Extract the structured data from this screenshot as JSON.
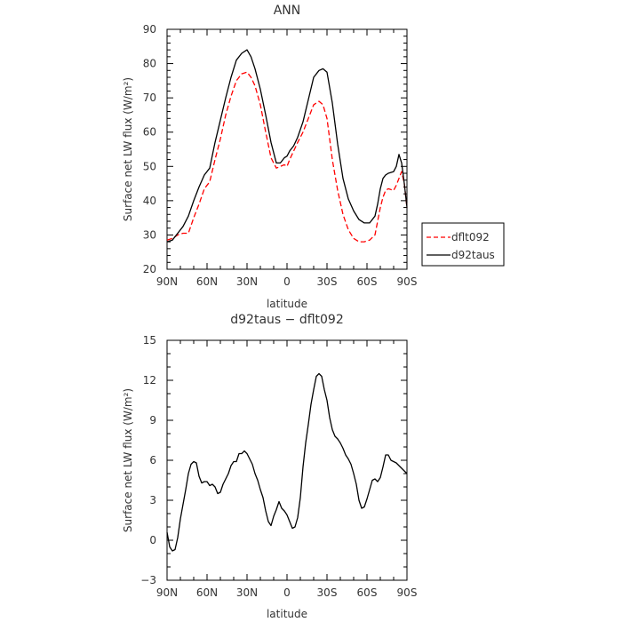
{
  "chart_data": [
    {
      "type": "line",
      "title": "ANN",
      "xlabel": "latitude",
      "ylabel": "Surface net LW flux (W/m²)",
      "xlim": [
        90,
        -90
      ],
      "ylim": [
        20,
        90
      ],
      "x_tick_values": [
        90,
        60,
        30,
        0,
        -30,
        -60,
        -90
      ],
      "x_tick_labels": [
        "90N",
        "60N",
        "30N",
        "0",
        "30S",
        "60S",
        "90S"
      ],
      "y_ticks": [
        20,
        30,
        40,
        50,
        60,
        70,
        80,
        90
      ],
      "grid": false,
      "legend_position": "right-bottom",
      "series": [
        {
          "name": "dflt092",
          "color": "#ff0000",
          "dash": "dashed",
          "x": [
            90,
            86,
            82,
            78,
            74,
            70,
            66,
            62,
            58,
            54,
            50,
            46,
            42,
            38,
            34,
            30,
            27,
            24,
            20,
            16,
            12,
            8,
            5,
            2,
            0,
            -2,
            -5,
            -8,
            -12,
            -16,
            -20,
            -24,
            -27,
            -30,
            -34,
            -38,
            -42,
            -46,
            -50,
            -54,
            -58,
            -62,
            -66,
            -68,
            -70,
            -72,
            -74,
            -76,
            -80,
            -82,
            -84,
            -86,
            -88,
            -90
          ],
          "values": [
            28.5,
            29.0,
            30.0,
            30.5,
            30.5,
            35.0,
            39.0,
            43.5,
            45.5,
            52.0,
            58.0,
            65.0,
            70.5,
            75.0,
            77.0,
            77.5,
            76.0,
            73.5,
            68.0,
            60.0,
            52.5,
            49.5,
            50.0,
            50.5,
            50.0,
            52.0,
            54.5,
            57.0,
            60.0,
            64.0,
            68.0,
            69.0,
            68.0,
            64.0,
            52.0,
            43.0,
            36.0,
            31.5,
            29.0,
            28.0,
            28.0,
            28.5,
            30.0,
            34.0,
            38.0,
            41.0,
            43.0,
            43.5,
            43.0,
            44.5,
            46.5,
            48.5,
            45.0,
            38.0
          ]
        },
        {
          "name": "d92taus",
          "color": "#000000",
          "dash": "solid",
          "x": [
            90,
            86,
            82,
            78,
            74,
            70,
            66,
            62,
            58,
            54,
            50,
            46,
            42,
            38,
            34,
            30,
            27,
            24,
            20,
            16,
            12,
            8,
            5,
            2,
            0,
            -2,
            -5,
            -8,
            -12,
            -16,
            -20,
            -24,
            -27,
            -30,
            -34,
            -38,
            -42,
            -46,
            -50,
            -54,
            -58,
            -62,
            -66,
            -68,
            -70,
            -72,
            -74,
            -76,
            -80,
            -82,
            -84,
            -86,
            -88,
            -90
          ],
          "values": [
            28.0,
            28.5,
            30.5,
            32.5,
            35.5,
            40.0,
            44.0,
            47.5,
            49.5,
            57.0,
            63.5,
            70.0,
            76.0,
            81.0,
            83.0,
            84.0,
            82.0,
            78.5,
            72.5,
            65.0,
            57.0,
            51.0,
            51.0,
            52.5,
            53.0,
            54.5,
            56.0,
            58.5,
            63.0,
            69.5,
            76.0,
            78.0,
            78.5,
            77.5,
            68.5,
            56.5,
            46.5,
            40.5,
            37.0,
            34.5,
            33.5,
            33.5,
            35.5,
            39.0,
            43.5,
            46.5,
            47.5,
            48.0,
            48.5,
            50.0,
            53.5,
            51.0,
            45.0,
            38.0
          ]
        }
      ]
    },
    {
      "type": "line",
      "title": "d92taus − dflt092",
      "xlabel": "latitude",
      "ylabel": "Surface net LW flux (W/m²)",
      "xlim": [
        90,
        -90
      ],
      "ylim": [
        -3,
        15
      ],
      "x_tick_values": [
        90,
        60,
        30,
        0,
        -30,
        -60,
        -90
      ],
      "x_tick_labels": [
        "90N",
        "60N",
        "30N",
        "0",
        "30S",
        "60S",
        "90S"
      ],
      "y_ticks": [
        -3,
        0,
        3,
        6,
        9,
        12,
        15
      ],
      "grid": false,
      "series": [
        {
          "color": "#000000",
          "dash": "solid",
          "x": [
            90,
            88,
            86,
            84,
            82,
            80,
            78,
            76,
            74,
            72,
            70,
            68,
            66,
            64,
            62,
            60,
            58,
            56,
            54,
            52,
            50,
            48,
            46,
            44,
            42,
            40,
            38,
            36,
            34,
            32,
            30,
            28,
            26,
            24,
            22,
            20,
            18,
            16,
            14,
            12,
            10,
            8,
            6,
            4,
            2,
            0,
            -2,
            -4,
            -6,
            -8,
            -10,
            -12,
            -14,
            -16,
            -18,
            -20,
            -22,
            -24,
            -26,
            -28,
            -30,
            -32,
            -34,
            -36,
            -38,
            -40,
            -42,
            -44,
            -46,
            -48,
            -50,
            -52,
            -54,
            -56,
            -58,
            -60,
            -62,
            -64,
            -66,
            -68,
            -70,
            -72,
            -74,
            -76,
            -78,
            -80,
            -82,
            -84,
            -86,
            -88,
            -90
          ],
          "values": [
            0.6,
            -0.5,
            -0.8,
            -0.7,
            0.2,
            1.6,
            2.7,
            3.8,
            5.0,
            5.7,
            5.9,
            5.8,
            4.8,
            4.3,
            4.4,
            4.4,
            4.1,
            4.2,
            4.0,
            3.5,
            3.6,
            4.2,
            4.6,
            5.0,
            5.6,
            5.9,
            5.9,
            6.5,
            6.5,
            6.7,
            6.5,
            6.1,
            5.7,
            5.0,
            4.5,
            3.8,
            3.2,
            2.2,
            1.4,
            1.1,
            1.8,
            2.3,
            2.9,
            2.4,
            2.2,
            1.9,
            1.4,
            0.9,
            1.0,
            1.7,
            3.2,
            5.5,
            7.3,
            8.7,
            10.2,
            11.3,
            12.3,
            12.5,
            12.3,
            11.3,
            10.5,
            9.2,
            8.3,
            7.8,
            7.6,
            7.3,
            6.9,
            6.4,
            6.1,
            5.7,
            5.0,
            4.2,
            3.0,
            2.4,
            2.5,
            3.1,
            3.8,
            4.5,
            4.6,
            4.4,
            4.7,
            5.5,
            6.4,
            6.4,
            6.0,
            5.9,
            5.8,
            5.6,
            5.4,
            5.2,
            5.0
          ]
        }
      ]
    }
  ]
}
